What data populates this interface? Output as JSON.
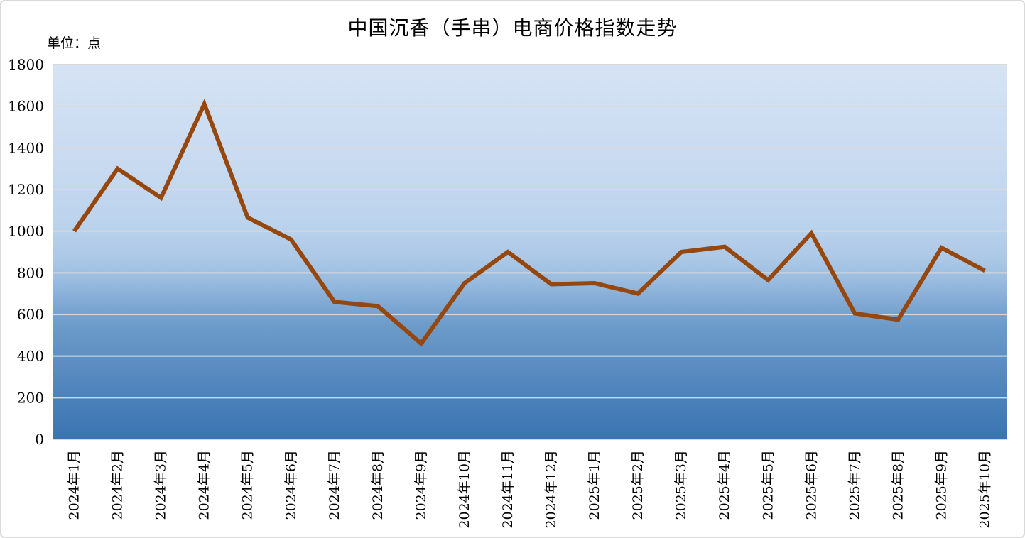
{
  "page": {
    "title": "中国沉香（手串）电商价格指数走势",
    "unit_label": "单位：点"
  },
  "chart_data": {
    "type": "line",
    "title": "中国沉香（手串）电商价格指数走势",
    "unit": "单位：点",
    "categories": [
      "2024年1月",
      "2024年2月",
      "2024年3月",
      "2024年4月",
      "2024年5月",
      "2024年6月",
      "2024年7月",
      "2024年8月",
      "2024年9月",
      "2024年10月",
      "2024年11月",
      "2024年12月",
      "2025年1月",
      "2025年2月",
      "2025年3月",
      "2025年4月",
      "2025年5月",
      "2025年6月",
      "2025年7月",
      "2025年8月",
      "2025年9月",
      "2025年10月"
    ],
    "series": [
      {
        "name": "中国沉香（手串）电商价格指数",
        "values": [
          1000,
          1300,
          1160,
          1610,
          1065,
          960,
          660,
          640,
          460,
          750,
          900,
          745,
          750,
          700,
          900,
          925,
          765,
          990,
          605,
          575,
          920,
          810
        ]
      }
    ],
    "xlabel": "",
    "ylabel": "单位：点",
    "ylim": [
      0,
      1800
    ],
    "yticks": [
      0,
      200,
      400,
      600,
      800,
      1000,
      1200,
      1400,
      1600,
      1800
    ],
    "grid": true,
    "legend_position": "none",
    "x_tick_rotation_deg": -90,
    "line_color": "#96470D",
    "line_width": 6,
    "gridline_color": "#D9D9D9",
    "text_color": "#000000",
    "plot_gradient": [
      [
        "0%",
        "#D5E3F4"
      ],
      [
        "25%",
        "#C9DBF1"
      ],
      [
        "42%",
        "#BCD3ED"
      ],
      [
        "52%",
        "#ABC8E7"
      ],
      [
        "58%",
        "#98BBDF"
      ],
      [
        "64%",
        "#7FA8D3"
      ],
      [
        "70%",
        "#6C9BC9"
      ],
      [
        "80%",
        "#5C8DC2"
      ],
      [
        "90%",
        "#4A80BA"
      ],
      [
        "100%",
        "#3A74B2"
      ]
    ]
  }
}
